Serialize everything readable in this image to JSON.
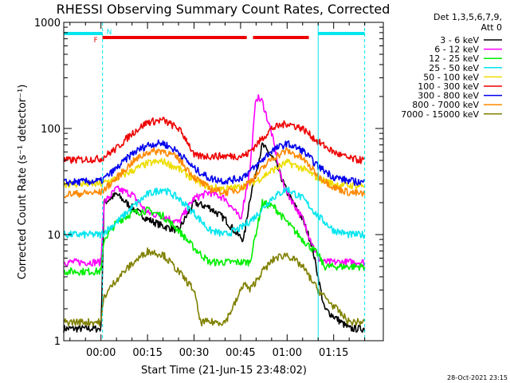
{
  "chart_data": {
    "type": "line",
    "title": "RHESSI Observing Summary Count Rates, Corrected",
    "xlabel": "Start Time (21-Jun-15 23:48:02)",
    "ylabel": "Corrected Count Rate (s⁻¹ detector⁻¹)",
    "yscale": "log",
    "ylim": [
      1,
      1000
    ],
    "xlim_minutes": [
      -12,
      91
    ],
    "x_tick_labels": [
      "00:00",
      "00:15",
      "00:30",
      "00:45",
      "01:00",
      "01:15"
    ],
    "x_tick_minutes": [
      0,
      15,
      30,
      45,
      60,
      75
    ],
    "y_tick_labels": [
      "1",
      "10",
      "100",
      "1000"
    ],
    "y_tick_values": [
      1,
      10,
      100,
      1000
    ],
    "legend_header": [
      "Det 1,3,5,6,7,9,",
      "Att 0"
    ],
    "timestamp": "28-Oct-2021 23:15",
    "flags": [
      {
        "label": "F",
        "color": "#ee0000",
        "segments": [
          [
            0.5,
            47
          ],
          [
            49,
            67
          ]
        ]
      },
      {
        "label": "N",
        "color": "#00e5ee",
        "segments": [
          [
            -12,
            0.5
          ],
          [
            70,
            85
          ]
        ]
      }
    ],
    "night_boundaries_minutes": [
      0.5,
      70,
      85
    ],
    "series": [
      {
        "name": "3 - 6 keV",
        "color": "#000000",
        "x": [
          -12,
          0,
          1,
          5,
          10,
          15,
          20,
          25,
          30,
          35,
          40,
          44,
          46,
          48,
          52,
          56,
          60,
          65,
          68,
          70,
          72,
          80,
          85
        ],
        "y": [
          1.3,
          1.3,
          20,
          24,
          18,
          14,
          12,
          11,
          20,
          18,
          14,
          10,
          9,
          22,
          70,
          50,
          25,
          14,
          8,
          4,
          2,
          1.3,
          1.3
        ]
      },
      {
        "name": "6 - 12 keV",
        "color": "#ff00ff",
        "x": [
          -12,
          0,
          1,
          5,
          10,
          15,
          20,
          25,
          30,
          35,
          40,
          45,
          48,
          50,
          52,
          55,
          58,
          60,
          65,
          70,
          72,
          80,
          85
        ],
        "y": [
          5.5,
          5.5,
          20,
          27,
          24,
          16,
          15,
          13,
          22,
          25,
          22,
          14,
          40,
          200,
          180,
          90,
          35,
          25,
          14,
          6,
          5.5,
          5.5,
          5.5
        ]
      },
      {
        "name": "12 - 25 keV",
        "color": "#00ee00",
        "x": [
          -12,
          0,
          1,
          5,
          10,
          15,
          20,
          25,
          30,
          35,
          40,
          45,
          48,
          52,
          56,
          60,
          65,
          70,
          72,
          80,
          85
        ],
        "y": [
          4.5,
          4.5,
          9,
          13,
          16,
          17,
          15,
          11,
          7.5,
          5.5,
          5.5,
          5.5,
          5.5,
          20,
          18,
          13,
          9,
          6.5,
          5,
          5,
          5
        ]
      },
      {
        "name": "25 - 50 keV",
        "color": "#00e5ee",
        "x": [
          -12,
          0,
          5,
          10,
          15,
          20,
          25,
          30,
          35,
          40,
          45,
          50,
          55,
          60,
          65,
          70,
          75,
          80,
          85
        ],
        "y": [
          10,
          10,
          13,
          18,
          24,
          27,
          22,
          16,
          11,
          10,
          11.5,
          15,
          22,
          27,
          22,
          15,
          11,
          10,
          10
        ]
      },
      {
        "name": "50 - 100 keV",
        "color": "#eedd00",
        "x": [
          -12,
          0,
          5,
          10,
          15,
          20,
          25,
          30,
          35,
          40,
          45,
          50,
          55,
          60,
          65,
          70,
          75,
          80,
          85
        ],
        "y": [
          30,
          30,
          34,
          40,
          47,
          49,
          42,
          33,
          28,
          27,
          28,
          32,
          40,
          48,
          42,
          34,
          30,
          29,
          29
        ]
      },
      {
        "name": "100 - 300 keV",
        "color": "#ee0000",
        "x": [
          -12,
          0,
          5,
          10,
          15,
          20,
          25,
          28,
          30,
          40,
          45,
          47,
          50,
          55,
          60,
          65,
          70,
          75,
          80,
          85
        ],
        "y": [
          50,
          52,
          65,
          90,
          115,
          120,
          100,
          75,
          55,
          55,
          55,
          57,
          70,
          100,
          112,
          100,
          75,
          60,
          52,
          50
        ]
      },
      {
        "name": "300 - 800 keV",
        "color": "#0000ee",
        "x": [
          -12,
          0,
          5,
          10,
          15,
          20,
          25,
          30,
          35,
          40,
          45,
          50,
          55,
          60,
          65,
          70,
          75,
          80,
          85
        ],
        "y": [
          31,
          32,
          42,
          58,
          70,
          73,
          60,
          42,
          34,
          32,
          34,
          44,
          62,
          72,
          62,
          44,
          35,
          32,
          31
        ]
      },
      {
        "name": "800 - 7000 keV",
        "color": "#ff8800",
        "x": [
          -12,
          0,
          5,
          10,
          15,
          20,
          25,
          30,
          35,
          40,
          45,
          50,
          55,
          60,
          65,
          70,
          75,
          80,
          85
        ],
        "y": [
          24,
          25,
          34,
          48,
          60,
          62,
          52,
          35,
          27,
          25,
          27,
          36,
          52,
          62,
          52,
          36,
          28,
          25,
          24
        ]
      },
      {
        "name": "7000 - 15000 keV",
        "color": "#808000",
        "x": [
          -12,
          0,
          1,
          5,
          10,
          15,
          20,
          25,
          30,
          32,
          40,
          44,
          46,
          48,
          52,
          56,
          60,
          65,
          70,
          72,
          80,
          85
        ],
        "y": [
          1.5,
          1.5,
          2.6,
          3.8,
          5.3,
          7,
          6.5,
          4.5,
          3,
          1.5,
          1.5,
          2.5,
          3.5,
          3,
          4.5,
          6,
          6.5,
          5,
          3,
          2.6,
          1.5,
          1.5
        ]
      }
    ]
  }
}
